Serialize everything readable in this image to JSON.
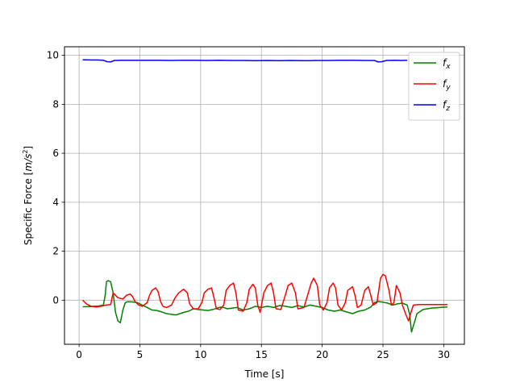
{
  "chart_data": {
    "type": "line",
    "xlabel": "Time [s]",
    "ylabel": "Specific Force [m/s²]",
    "ylabel_main": "Specific Force [",
    "ylabel_unit": "m/s",
    "ylabel_exp": "2",
    "ylabel_close": "]",
    "xlim": [
      -1.2,
      31.7
    ],
    "ylim": [
      -1.8,
      10.35
    ],
    "xticks": [
      0,
      5,
      10,
      15,
      20,
      25,
      30
    ],
    "yticks": [
      0,
      2,
      4,
      6,
      8,
      10
    ],
    "xtick_labels": [
      "0",
      "5",
      "10",
      "15",
      "20",
      "25",
      "30"
    ],
    "ytick_labels": [
      "0",
      "2",
      "4",
      "6",
      "8",
      "10"
    ],
    "grid": true,
    "legend_position": "top-right",
    "series": [
      {
        "name": "f_x",
        "label_main": "f",
        "label_sub": "x",
        "color": "#008000",
        "points": [
          [
            0.3,
            -0.27
          ],
          [
            0.8,
            -0.26
          ],
          [
            1.2,
            -0.25
          ],
          [
            1.6,
            -0.24
          ],
          [
            2.0,
            -0.2
          ],
          [
            2.15,
            0.2
          ],
          [
            2.25,
            0.75
          ],
          [
            2.4,
            0.8
          ],
          [
            2.6,
            0.75
          ],
          [
            2.8,
            0.3
          ],
          [
            3.0,
            -0.5
          ],
          [
            3.2,
            -0.85
          ],
          [
            3.4,
            -0.92
          ],
          [
            3.6,
            -0.4
          ],
          [
            3.8,
            -0.1
          ],
          [
            4.0,
            -0.06
          ],
          [
            4.4,
            -0.07
          ],
          [
            4.8,
            -0.1
          ],
          [
            5.2,
            -0.2
          ],
          [
            5.6,
            -0.3
          ],
          [
            6.0,
            -0.4
          ],
          [
            6.4,
            -0.42
          ],
          [
            6.8,
            -0.48
          ],
          [
            7.2,
            -0.55
          ],
          [
            7.6,
            -0.58
          ],
          [
            8.0,
            -0.6
          ],
          [
            8.3,
            -0.55
          ],
          [
            8.6,
            -0.5
          ],
          [
            9.0,
            -0.45
          ],
          [
            9.4,
            -0.35
          ],
          [
            9.8,
            -0.38
          ],
          [
            10.2,
            -0.4
          ],
          [
            10.6,
            -0.42
          ],
          [
            11.0,
            -0.38
          ],
          [
            11.5,
            -0.3
          ],
          [
            11.8,
            -0.28
          ],
          [
            12.2,
            -0.35
          ],
          [
            12.6,
            -0.32
          ],
          [
            13.0,
            -0.3
          ],
          [
            13.5,
            -0.4
          ],
          [
            14.0,
            -0.35
          ],
          [
            14.5,
            -0.25
          ],
          [
            15.0,
            -0.3
          ],
          [
            15.5,
            -0.25
          ],
          [
            16.0,
            -0.3
          ],
          [
            16.5,
            -0.22
          ],
          [
            17.0,
            -0.25
          ],
          [
            17.5,
            -0.3
          ],
          [
            18.0,
            -0.22
          ],
          [
            18.5,
            -0.28
          ],
          [
            19.0,
            -0.2
          ],
          [
            19.5,
            -0.25
          ],
          [
            20.0,
            -0.3
          ],
          [
            20.5,
            -0.4
          ],
          [
            21.0,
            -0.45
          ],
          [
            21.5,
            -0.4
          ],
          [
            22.0,
            -0.48
          ],
          [
            22.5,
            -0.55
          ],
          [
            23.0,
            -0.45
          ],
          [
            23.5,
            -0.4
          ],
          [
            24.0,
            -0.28
          ],
          [
            24.3,
            -0.1
          ],
          [
            24.6,
            -0.05
          ],
          [
            25.0,
            -0.08
          ],
          [
            25.4,
            -0.12
          ],
          [
            25.8,
            -0.2
          ],
          [
            26.2,
            -0.15
          ],
          [
            26.6,
            -0.12
          ],
          [
            27.0,
            -0.2
          ],
          [
            27.2,
            -0.6
          ],
          [
            27.35,
            -1.3
          ],
          [
            27.5,
            -1.05
          ],
          [
            27.8,
            -0.55
          ],
          [
            28.3,
            -0.38
          ],
          [
            29.0,
            -0.32
          ],
          [
            30.3,
            -0.28
          ]
        ]
      },
      {
        "name": "f_y",
        "label_main": "f",
        "label_sub": "y",
        "color": "#ff0000",
        "points": [
          [
            0.3,
            0.0
          ],
          [
            0.6,
            -0.15
          ],
          [
            1.0,
            -0.25
          ],
          [
            1.4,
            -0.28
          ],
          [
            1.8,
            -0.25
          ],
          [
            2.2,
            -0.2
          ],
          [
            2.6,
            -0.18
          ],
          [
            2.8,
            0.3
          ],
          [
            3.0,
            0.2
          ],
          [
            3.2,
            0.1
          ],
          [
            3.6,
            0.05
          ],
          [
            3.9,
            0.2
          ],
          [
            4.2,
            0.25
          ],
          [
            4.4,
            0.15
          ],
          [
            4.6,
            -0.05
          ],
          [
            4.9,
            -0.2
          ],
          [
            5.2,
            -0.25
          ],
          [
            5.6,
            -0.1
          ],
          [
            5.8,
            0.2
          ],
          [
            6.0,
            0.4
          ],
          [
            6.3,
            0.5
          ],
          [
            6.5,
            0.35
          ],
          [
            6.7,
            -0.05
          ],
          [
            6.9,
            -0.25
          ],
          [
            7.2,
            -0.3
          ],
          [
            7.6,
            -0.2
          ],
          [
            7.9,
            0.1
          ],
          [
            8.2,
            0.3
          ],
          [
            8.6,
            0.45
          ],
          [
            8.9,
            0.3
          ],
          [
            9.1,
            -0.15
          ],
          [
            9.4,
            -0.35
          ],
          [
            9.8,
            -0.35
          ],
          [
            10.1,
            -0.1
          ],
          [
            10.3,
            0.3
          ],
          [
            10.6,
            0.45
          ],
          [
            10.9,
            0.5
          ],
          [
            11.1,
            0.1
          ],
          [
            11.3,
            -0.35
          ],
          [
            11.6,
            -0.38
          ],
          [
            11.9,
            -0.2
          ],
          [
            12.1,
            0.4
          ],
          [
            12.4,
            0.6
          ],
          [
            12.7,
            0.7
          ],
          [
            12.9,
            0.3
          ],
          [
            13.1,
            -0.4
          ],
          [
            13.5,
            -0.45
          ],
          [
            13.8,
            -0.1
          ],
          [
            14.0,
            0.45
          ],
          [
            14.3,
            0.65
          ],
          [
            14.5,
            0.5
          ],
          [
            14.7,
            -0.2
          ],
          [
            14.9,
            -0.5
          ],
          [
            15.2,
            0.3
          ],
          [
            15.5,
            0.6
          ],
          [
            15.8,
            0.7
          ],
          [
            16.0,
            0.3
          ],
          [
            16.2,
            -0.35
          ],
          [
            16.6,
            -0.38
          ],
          [
            16.9,
            0.1
          ],
          [
            17.2,
            0.6
          ],
          [
            17.5,
            0.7
          ],
          [
            17.8,
            0.3
          ],
          [
            18.0,
            -0.35
          ],
          [
            18.5,
            -0.3
          ],
          [
            18.8,
            0.2
          ],
          [
            19.1,
            0.7
          ],
          [
            19.3,
            0.9
          ],
          [
            19.6,
            0.6
          ],
          [
            19.8,
            -0.2
          ],
          [
            20.1,
            -0.4
          ],
          [
            20.4,
            -0.1
          ],
          [
            20.6,
            0.5
          ],
          [
            20.9,
            0.7
          ],
          [
            21.1,
            0.5
          ],
          [
            21.3,
            -0.2
          ],
          [
            21.6,
            -0.4
          ],
          [
            21.9,
            -0.1
          ],
          [
            22.1,
            0.4
          ],
          [
            22.5,
            0.55
          ],
          [
            22.7,
            0.2
          ],
          [
            22.9,
            -0.3
          ],
          [
            23.2,
            -0.2
          ],
          [
            23.5,
            0.4
          ],
          [
            23.8,
            0.55
          ],
          [
            24.0,
            0.2
          ],
          [
            24.2,
            -0.2
          ],
          [
            24.5,
            -0.1
          ],
          [
            24.8,
            0.9
          ],
          [
            25.0,
            1.05
          ],
          [
            25.2,
            1.0
          ],
          [
            25.5,
            0.4
          ],
          [
            25.7,
            -0.2
          ],
          [
            25.9,
            -0.1
          ],
          [
            26.1,
            0.6
          ],
          [
            26.4,
            0.3
          ],
          [
            26.6,
            -0.2
          ],
          [
            26.9,
            -0.6
          ],
          [
            27.1,
            -0.85
          ],
          [
            27.3,
            -0.5
          ],
          [
            27.5,
            -0.2
          ],
          [
            28.0,
            -0.18
          ],
          [
            29.0,
            -0.18
          ],
          [
            30.3,
            -0.18
          ]
        ]
      },
      {
        "name": "f_z",
        "label_main": "f",
        "label_sub": "z",
        "color": "#0000ff",
        "points": [
          [
            0.3,
            9.82
          ],
          [
            1.0,
            9.81
          ],
          [
            1.5,
            9.81
          ],
          [
            2.0,
            9.8
          ],
          [
            2.3,
            9.74
          ],
          [
            2.6,
            9.73
          ],
          [
            2.9,
            9.79
          ],
          [
            3.5,
            9.8
          ],
          [
            4.5,
            9.8
          ],
          [
            5.5,
            9.8
          ],
          [
            6.5,
            9.8
          ],
          [
            7.5,
            9.79
          ],
          [
            8.5,
            9.8
          ],
          [
            9.5,
            9.8
          ],
          [
            10.5,
            9.79
          ],
          [
            11.5,
            9.8
          ],
          [
            12.5,
            9.79
          ],
          [
            13.5,
            9.79
          ],
          [
            14.5,
            9.78
          ],
          [
            15.5,
            9.79
          ],
          [
            16.5,
            9.78
          ],
          [
            17.5,
            9.79
          ],
          [
            18.5,
            9.78
          ],
          [
            19.5,
            9.79
          ],
          [
            20.5,
            9.79
          ],
          [
            21.5,
            9.8
          ],
          [
            22.5,
            9.8
          ],
          [
            23.5,
            9.79
          ],
          [
            24.3,
            9.79
          ],
          [
            24.6,
            9.73
          ],
          [
            24.9,
            9.74
          ],
          [
            25.3,
            9.79
          ],
          [
            26.0,
            9.8
          ],
          [
            26.5,
            9.79
          ],
          [
            27.0,
            9.8
          ]
        ]
      }
    ]
  }
}
